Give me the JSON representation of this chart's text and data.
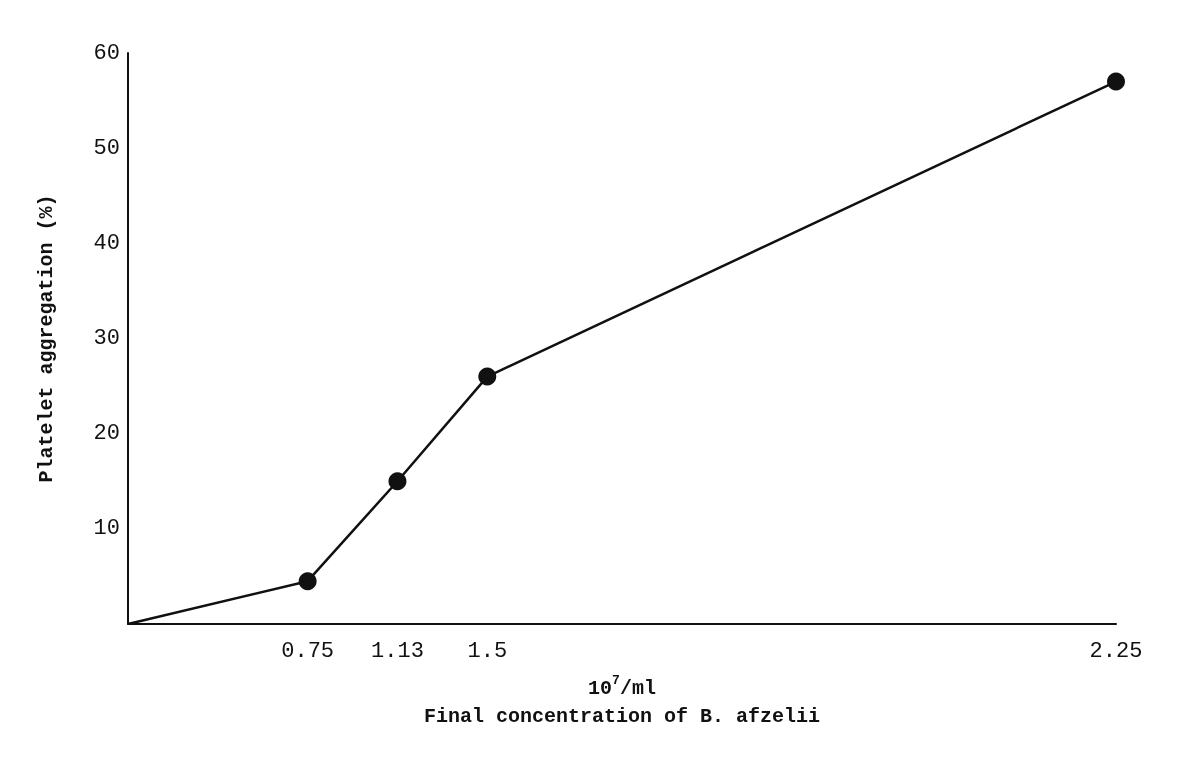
{
  "chart_data": {
    "type": "line",
    "xlabel": "10$^{7}$/ml\nFinal concentration of B. afzelii",
    "ylabel": "Platelet aggregation (%)",
    "categories": [
      null,
      null,
      "0.75",
      "1.13",
      "1.5",
      null,
      null,
      null,
      null,
      null,
      null,
      "2.25"
    ],
    "series": [
      {
        "color": "#111111",
        "values": [
          0,
          null,
          4.5,
          15,
          26,
          null,
          null,
          null,
          null,
          null,
          null,
          57
        ]
      }
    ],
    "ylim": [
      0,
      60
    ],
    "yticks": [
      10,
      20,
      30,
      40,
      50,
      60
    ],
    "grid": false,
    "marker": "circle",
    "line_style": "solid"
  }
}
